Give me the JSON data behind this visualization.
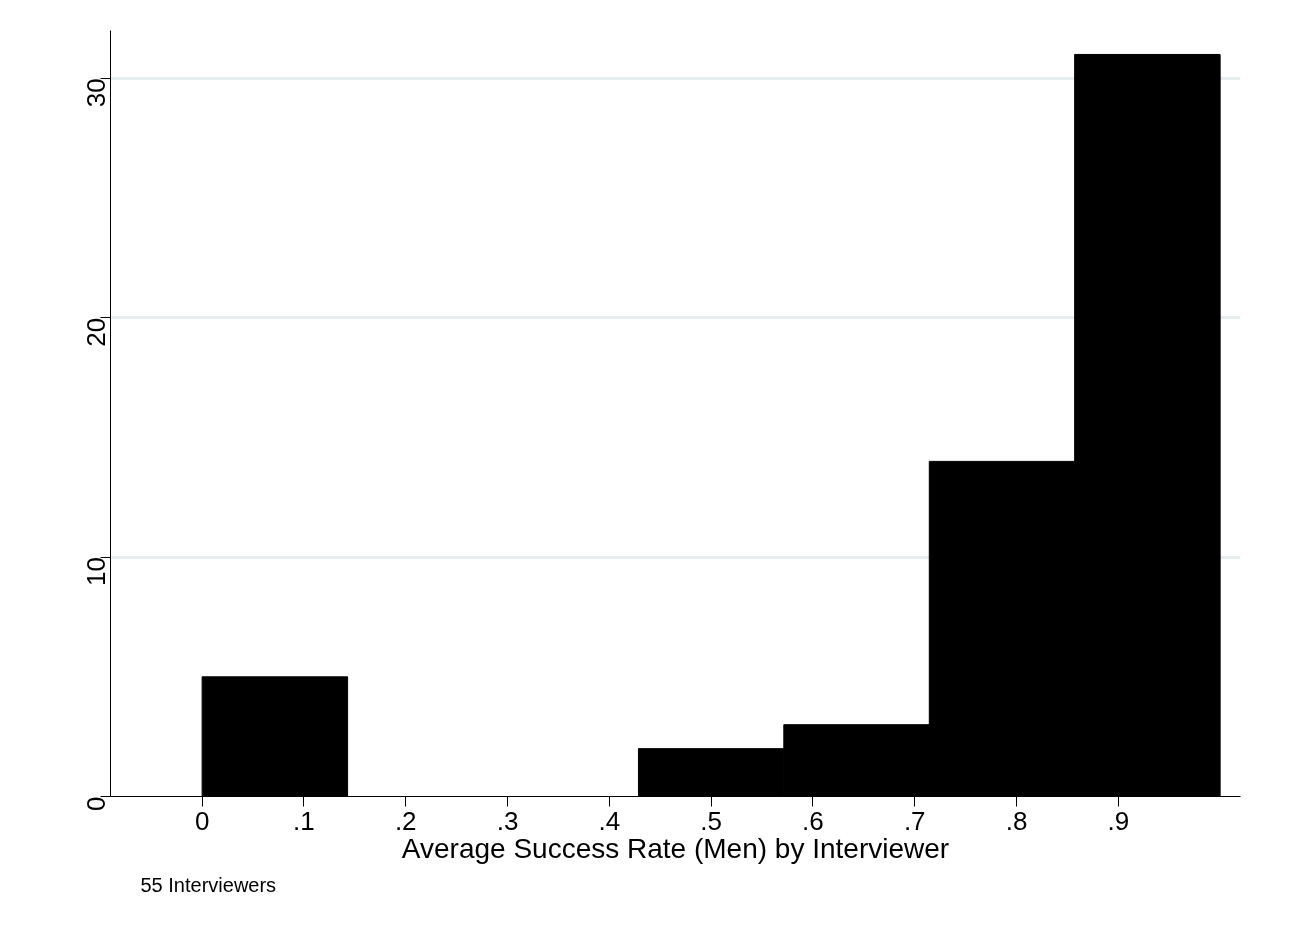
{
  "chart_data": {
    "type": "histogram",
    "xlabel": "Average Success Rate (Men) by Interviewer",
    "annotations": [
      "55 Interviewers"
    ],
    "bins": [
      0,
      0.1429,
      0.2857,
      0.4286,
      0.5714,
      0.7143,
      0.8571,
      1
    ],
    "values": [
      5,
      0,
      0,
      2,
      3,
      14,
      31
    ],
    "color": "#000000",
    "xlim": [
      -0.09,
      1.02
    ],
    "xticks": [
      0,
      {
        "value": 0.1,
        "label": ".1"
      },
      {
        "value": 0.2,
        "label": ".2"
      },
      {
        "value": 0.3,
        "label": ".3"
      },
      {
        "value": 0.4,
        "label": ".4"
      },
      {
        "value": 0.5,
        "label": ".5"
      },
      {
        "value": 0.6,
        "label": ".6"
      },
      {
        "value": 0.7,
        "label": ".7"
      },
      {
        "value": 0.8,
        "label": ".8"
      },
      {
        "value": 0.9,
        "label": ".9"
      }
    ],
    "ylim": [
      0,
      32
    ],
    "yticks": [
      0,
      10,
      20,
      30
    ],
    "grid": "y"
  }
}
